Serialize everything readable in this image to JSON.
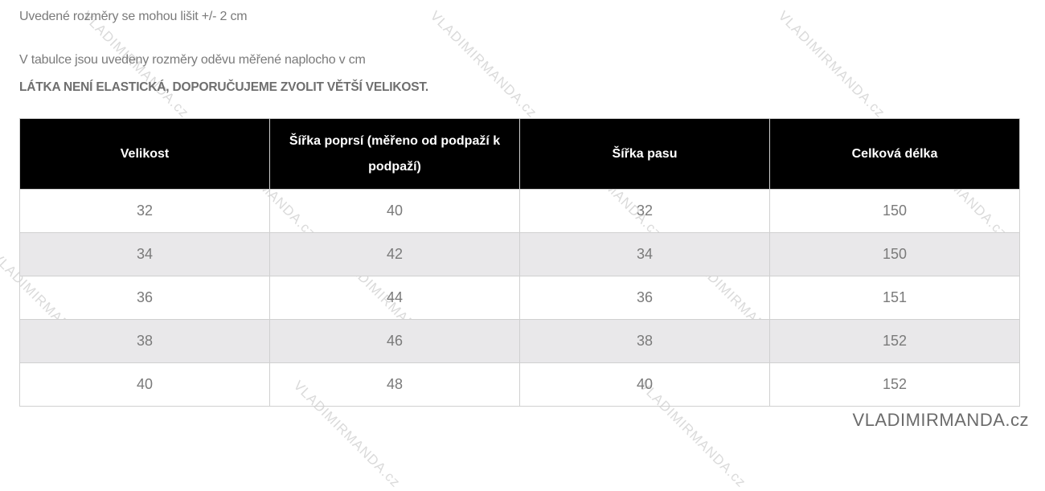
{
  "notes": {
    "tolerance": "Uvedené rozměry se mohou lišit +/- 2 cm",
    "measured": "V tabulce jsou uvedeny rozměry oděvu měřené naplocho v cm",
    "warning": "LÁTKA NENÍ ELASTICKÁ, DOPORUČUJEME ZVOLIT VĚTŠÍ VELIKOST."
  },
  "table": {
    "headers": [
      "Velikost",
      "Šířka poprsí (měřeno od podpaží k podpaží)",
      "Šířka pasu",
      "Celková délka"
    ],
    "rows": [
      [
        "32",
        "40",
        "32",
        "150"
      ],
      [
        "34",
        "42",
        "34",
        "150"
      ],
      [
        "36",
        "44",
        "36",
        "151"
      ],
      [
        "38",
        "46",
        "38",
        "152"
      ],
      [
        "40",
        "48",
        "40",
        "152"
      ]
    ]
  },
  "watermark": "VLADIMIRMANDA.cz",
  "logo": "VLADIMIRMANDA.cz",
  "colors": {
    "header_bg": "#000000",
    "alt_row": "#e9e8ea"
  }
}
